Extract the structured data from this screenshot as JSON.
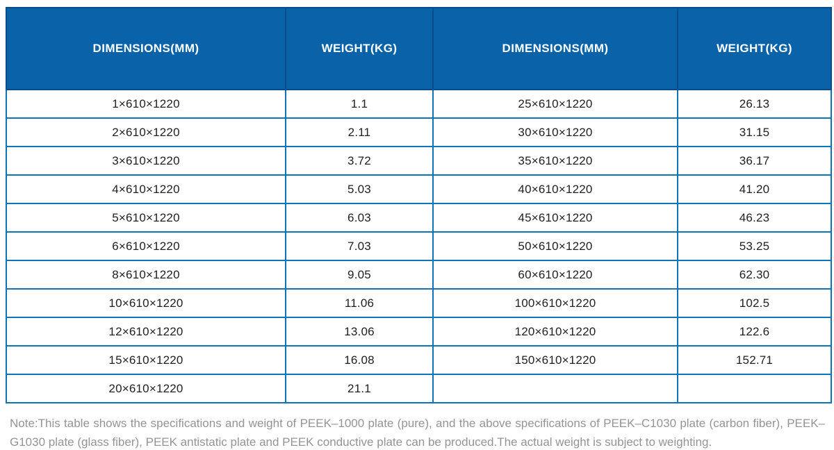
{
  "chart_data": {
    "type": "table",
    "columns": [
      "DIMENSIONS(MM)",
      "WEIGHT(KG)",
      "DIMENSIONS(MM)",
      "WEIGHT(KG)"
    ],
    "rows": [
      [
        "1×610×1220",
        "1.1",
        "25×610×1220",
        "26.13"
      ],
      [
        "2×610×1220",
        "2.11",
        "30×610×1220",
        "31.15"
      ],
      [
        "3×610×1220",
        "3.72",
        "35×610×1220",
        "36.17"
      ],
      [
        "4×610×1220",
        "5.03",
        "40×610×1220",
        "41.20"
      ],
      [
        "5×610×1220",
        "6.03",
        "45×610×1220",
        "46.23"
      ],
      [
        "6×610×1220",
        "7.03",
        "50×610×1220",
        "53.25"
      ],
      [
        "8×610×1220",
        "9.05",
        "60×610×1220",
        "62.30"
      ],
      [
        "10×610×1220",
        "11.06",
        "100×610×1220",
        "102.5"
      ],
      [
        "12×610×1220",
        "13.06",
        "120×610×1220",
        "122.6"
      ],
      [
        "15×610×1220",
        "16.08",
        "150×610×1220",
        "152.71"
      ],
      [
        "20×610×1220",
        "21.1",
        "",
        ""
      ]
    ]
  },
  "note": "Note:This table shows the specifications and weight of PEEK–1000 plate (pure), and the above specifications of PEEK–C1030 plate (carbon fiber), PEEK–G1030 plate (glass fiber), PEEK antistatic plate and PEEK conductive plate can be produced.The actual weight is subject to weighting.",
  "colors": {
    "header_bg": "#0a62a8",
    "header_border": "#084d8a",
    "grid_line": "#0e74ba",
    "header_text": "#ffffff",
    "cell_text": "#212121",
    "note_text": "#929496"
  }
}
